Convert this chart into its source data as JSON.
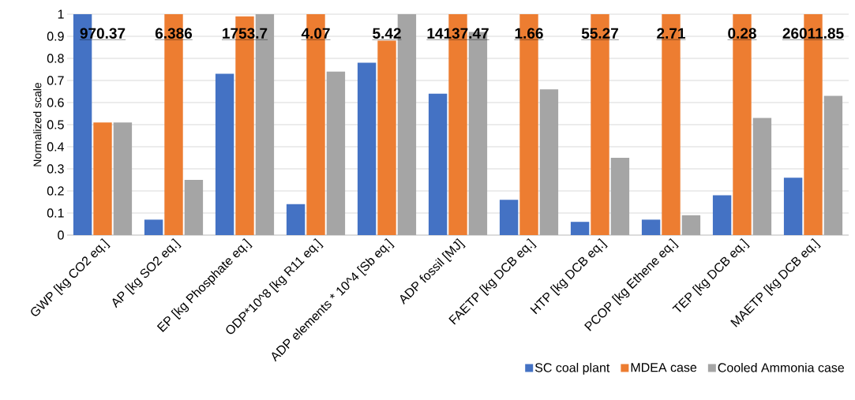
{
  "chart_data": {
    "type": "bar",
    "ylabel": "Normalized scale",
    "categories": [
      "GWP [kg CO2 eq.]",
      "AP [kg SO2 eq.]",
      "EP [kg Phosphate eq.]",
      "ODP*10^8 [kg R11 eq.]",
      "ADP elements * 10^4 [Sb eq.]",
      "ADP fossil [MJ]",
      "FAETP [kg DCB eq.]",
      "HTP [kg DCB eq.]",
      "PCOP [kg Ethene eq.]",
      "TEP [kg DCB eq.]",
      "MAETP [kg DCB eq.]"
    ],
    "series": [
      {
        "name": "SC coal plant",
        "color": "#4472c4",
        "values": [
          1,
          0.07,
          0.73,
          0.14,
          0.78,
          0.64,
          0.16,
          0.06,
          0.07,
          0.18,
          0.26
        ]
      },
      {
        "name": "MDEA case",
        "color": "#ed7d31",
        "values": [
          0.51,
          1,
          0.99,
          1,
          0.88,
          1,
          1,
          1,
          1,
          1,
          1
        ]
      },
      {
        "name": "Cooled Ammonia case",
        "color": "#a5a5a5",
        "values": [
          0.51,
          0.25,
          1,
          0.74,
          1,
          0.92,
          0.66,
          0.35,
          0.09,
          0.53,
          0.63
        ]
      }
    ],
    "annotations": [
      "970.37",
      "6.386",
      "1753.7",
      "4.07",
      "5.42",
      "14137.47",
      "1.66",
      "55.27",
      "2.71",
      "0.28",
      "26011.85"
    ],
    "ylim": [
      0,
      1
    ],
    "yticks": [
      0,
      0.1,
      0.2,
      0.3,
      0.4,
      0.5,
      0.6,
      0.7,
      0.8,
      0.9,
      1
    ],
    "grid": "y",
    "legend": "bottom"
  }
}
